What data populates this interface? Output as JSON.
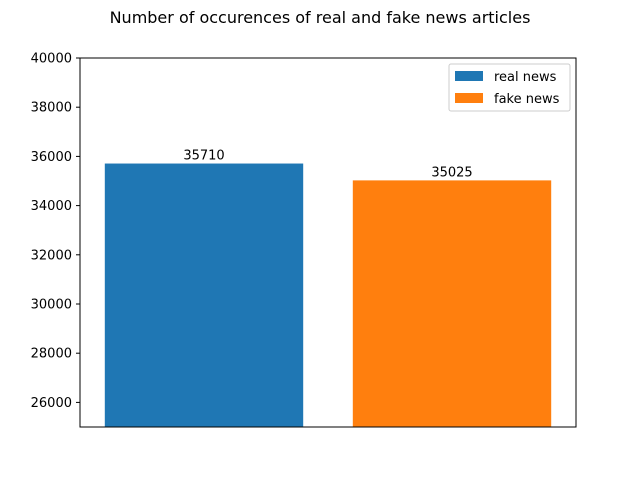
{
  "chart_data": {
    "type": "bar",
    "title": "Number of occurences of real and fake news articles",
    "xlabel": "",
    "ylabel": "",
    "ylim": [
      25000,
      40000
    ],
    "yticks": [
      26000,
      28000,
      30000,
      32000,
      34000,
      36000,
      38000,
      40000
    ],
    "grid": false,
    "legend_position": "top-right",
    "series": [
      {
        "name": "real news",
        "values": [
          35710
        ],
        "color": "#1f77b4"
      },
      {
        "name": "fake news",
        "values": [
          35025
        ],
        "color": "#ff7f0e"
      }
    ],
    "data_labels": [
      "35710",
      "35025"
    ]
  }
}
